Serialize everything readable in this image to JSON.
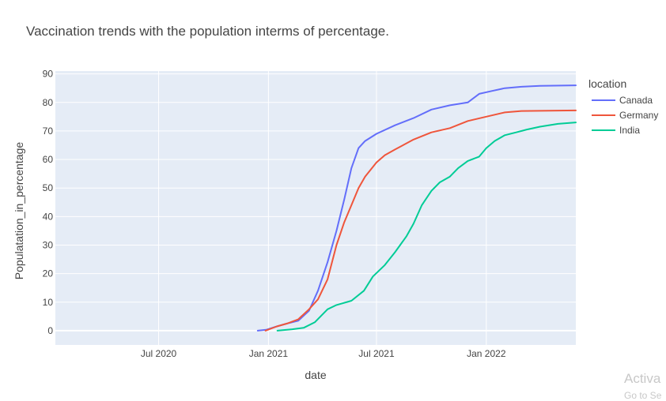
{
  "chart_data": {
    "type": "line",
    "title": "Vaccination trends with the population interms of percentage.",
    "xlabel": "date",
    "ylabel": "Populatation_in_percentage",
    "xlim": [
      "2020-01-10",
      "2022-05-31"
    ],
    "ylim": [
      -5,
      91
    ],
    "x_ticks": [
      {
        "date": "2020-07-01",
        "label": "Jul 2020"
      },
      {
        "date": "2021-01-01",
        "label": "Jan 2021"
      },
      {
        "date": "2021-07-01",
        "label": "Jul 2021"
      },
      {
        "date": "2022-01-01",
        "label": "Jan 2022"
      }
    ],
    "y_ticks": [
      0,
      10,
      20,
      30,
      40,
      50,
      60,
      70,
      80,
      90
    ],
    "grid": true,
    "legend": {
      "title": "location",
      "placement": "right"
    },
    "series": [
      {
        "name": "Canada",
        "color": "#636efa",
        "points": [
          [
            "2020-12-14",
            0
          ],
          [
            "2020-12-28",
            0.3
          ],
          [
            "2021-01-15",
            1.5
          ],
          [
            "2021-02-01",
            2.5
          ],
          [
            "2021-02-20",
            3.5
          ],
          [
            "2021-03-10",
            7
          ],
          [
            "2021-03-25",
            14
          ],
          [
            "2021-04-10",
            24
          ],
          [
            "2021-04-25",
            35
          ],
          [
            "2021-05-08",
            46
          ],
          [
            "2021-05-20",
            57
          ],
          [
            "2021-06-01",
            64
          ],
          [
            "2021-06-12",
            66.5
          ],
          [
            "2021-07-01",
            69
          ],
          [
            "2021-08-01",
            72
          ],
          [
            "2021-09-01",
            74.5
          ],
          [
            "2021-10-01",
            77.5
          ],
          [
            "2021-11-01",
            79
          ],
          [
            "2021-12-01",
            80
          ],
          [
            "2021-12-20",
            83
          ],
          [
            "2022-01-10",
            84
          ],
          [
            "2022-02-01",
            85
          ],
          [
            "2022-03-01",
            85.5
          ],
          [
            "2022-04-01",
            85.8
          ],
          [
            "2022-05-31",
            86
          ]
        ]
      },
      {
        "name": "Germany",
        "color": "#ef553b",
        "points": [
          [
            "2020-12-27",
            0
          ],
          [
            "2021-01-15",
            1.5
          ],
          [
            "2021-02-01",
            2.5
          ],
          [
            "2021-02-20",
            4
          ],
          [
            "2021-03-10",
            7.5
          ],
          [
            "2021-03-25",
            11
          ],
          [
            "2021-04-10",
            18
          ],
          [
            "2021-04-25",
            30
          ],
          [
            "2021-05-08",
            38
          ],
          [
            "2021-05-20",
            44
          ],
          [
            "2021-06-01",
            50
          ],
          [
            "2021-06-12",
            54
          ],
          [
            "2021-07-01",
            59
          ],
          [
            "2021-07-15",
            61.5
          ],
          [
            "2021-08-01",
            63.5
          ],
          [
            "2021-09-01",
            67
          ],
          [
            "2021-10-01",
            69.5
          ],
          [
            "2021-11-01",
            71
          ],
          [
            "2021-12-01",
            73.5
          ],
          [
            "2022-01-01",
            75
          ],
          [
            "2022-02-01",
            76.5
          ],
          [
            "2022-03-01",
            77
          ],
          [
            "2022-05-31",
            77.2
          ]
        ]
      },
      {
        "name": "India",
        "color": "#00cc96",
        "points": [
          [
            "2021-01-16",
            0
          ],
          [
            "2021-02-10",
            0.5
          ],
          [
            "2021-03-01",
            1
          ],
          [
            "2021-03-20",
            3
          ],
          [
            "2021-04-10",
            7.5
          ],
          [
            "2021-04-25",
            9
          ],
          [
            "2021-05-20",
            10.5
          ],
          [
            "2021-06-10",
            14
          ],
          [
            "2021-06-25",
            19
          ],
          [
            "2021-07-15",
            23
          ],
          [
            "2021-08-01",
            27.5
          ],
          [
            "2021-08-20",
            33
          ],
          [
            "2021-09-01",
            37.5
          ],
          [
            "2021-09-15",
            44
          ],
          [
            "2021-10-01",
            49
          ],
          [
            "2021-10-15",
            52
          ],
          [
            "2021-11-01",
            54
          ],
          [
            "2021-11-15",
            57
          ],
          [
            "2021-12-01",
            59.5
          ],
          [
            "2021-12-20",
            61
          ],
          [
            "2022-01-01",
            64
          ],
          [
            "2022-01-15",
            66.5
          ],
          [
            "2022-02-01",
            68.5
          ],
          [
            "2022-02-20",
            69.5
          ],
          [
            "2022-03-10",
            70.5
          ],
          [
            "2022-04-01",
            71.5
          ],
          [
            "2022-05-01",
            72.5
          ],
          [
            "2022-05-31",
            73
          ]
        ]
      }
    ]
  },
  "overlay": {
    "watermark_text": "Activa",
    "watermark_sub": "Go to Se"
  }
}
